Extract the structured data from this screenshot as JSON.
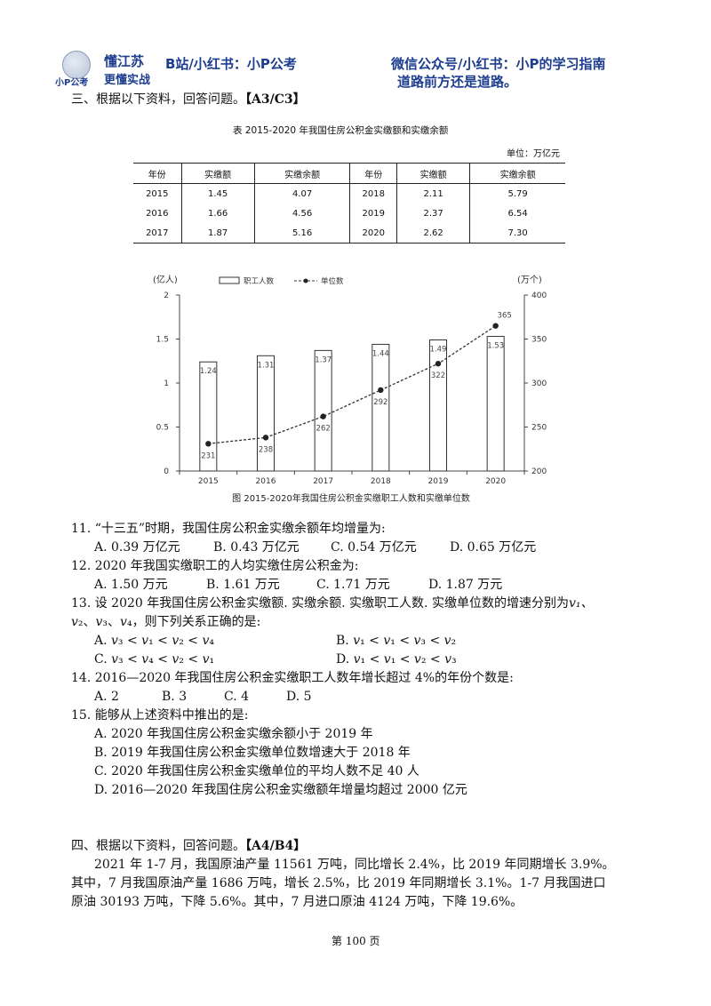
{
  "header": {
    "logo_text": "小P公考",
    "brand_top": "懂江苏",
    "brand_bottom": "更懂实战",
    "bilibili": "B站/小红书：小P公考",
    "wechat": "微信公众号/小红书：小P的学习指南",
    "slogan": "道路前方还是道路。"
  },
  "section3": {
    "heading": "三、根据以下资料，回答问题。",
    "tag": "【A3/C3】",
    "table_title": "表 2015-2020 年我国住房公积金实缴额和实缴余额",
    "unit": "单位：万亿元",
    "table_headers": [
      "年份",
      "实缴额",
      "实缴余额",
      "年份",
      "实缴额",
      "实缴余额"
    ],
    "table_rows": [
      [
        "2015",
        "1.45",
        "4.07",
        "2018",
        "2.11",
        "5.79"
      ],
      [
        "2016",
        "1.66",
        "4.56",
        "2019",
        "2.37",
        "6.54"
      ],
      [
        "2017",
        "1.87",
        "5.16",
        "2020",
        "2.62",
        "7.30"
      ]
    ]
  },
  "chart_data": {
    "type": "bar",
    "categories": [
      "2015",
      "2016",
      "2017",
      "2018",
      "2019",
      "2020"
    ],
    "series": [
      {
        "name": "职工人数",
        "type": "bar",
        "axis": "left",
        "values": [
          1.24,
          1.31,
          1.37,
          1.44,
          1.49,
          1.53
        ]
      },
      {
        "name": "单位数",
        "type": "line",
        "axis": "right",
        "values": [
          231,
          238,
          262,
          292,
          322,
          365
        ]
      }
    ],
    "ylabel": "(亿人)",
    "y2label": "(万个)",
    "ylim": [
      0,
      2
    ],
    "y2lim": [
      200,
      400
    ],
    "yticks": [
      "0",
      "0.5",
      "1",
      "1.5",
      "2"
    ],
    "y2ticks": [
      "200",
      "250",
      "300",
      "350",
      "400"
    ],
    "title": "图  2015-2020年我国住房公积金实缴职工人数和实缴单位数",
    "legend_position": "top-left",
    "grid": false
  },
  "questions": {
    "q11": {
      "stem": "11. “十三五”时期，我国住房公积金实缴余额年均增量为:",
      "a": "A. 0.39 万亿元",
      "b": "B. 0.43 万亿元",
      "c": "C. 0.54 万亿元",
      "d": "D. 0.65 万亿元"
    },
    "q12": {
      "stem": "12. 2020 年我国实缴职工的人均实缴住房公积金为:",
      "a": "A. 1.50 万元",
      "b": "B. 1.61 万元",
      "c": "C. 1.71 万元",
      "d": "D. 1.87 万元"
    },
    "q13": {
      "stem1": "13. 设 2020 年我国住房公积金实缴额. 实缴余额. 实缴职工人数. 实缴单位数的增速分别为",
      "stem1_tail": "𝑣₁、",
      "stem2": "𝑣₂、𝑣₃、𝑣₄，则下列关系正确的是:",
      "a": "A. 𝑣₃ < 𝑣₁ < 𝑣₂ < 𝑣₄",
      "b": "B. 𝑣₁ < 𝑣₁ < 𝑣₃ < 𝑣₂",
      "c": "C. 𝑣₃ < 𝑣₄ < 𝑣₂ < 𝑣₁",
      "d": "D. 𝑣₁ < 𝑣₁ < 𝑣₂ < 𝑣₃"
    },
    "q14": {
      "stem": "14. 2016—2020 年我国住房公积金实缴职工人数年增长超过 4%的年份个数是:",
      "a": "A. 2",
      "b": "B. 3",
      "c": "C. 4",
      "d": "D. 5"
    },
    "q15": {
      "stem": "15. 能够从上述资料中推出的是:",
      "a": "A. 2020 年我国住房公积金实缴余额小于 2019 年",
      "b": "B. 2019 年我国住房公积金实缴单位数增速大于 2018 年",
      "c": "C. 2020 年我国住房公积金实缴单位的平均人数不足 40 人",
      "d": "D. 2016—2020 年我国住房公积金实缴额年增量均超过 2000 亿元"
    }
  },
  "section4": {
    "heading": "四、根据以下资料，回答问题。",
    "tag": "【A4/B4】",
    "p1": "2021 年 1-7 月，我国原油产量 11561 万吨，同比增长 2.4%，比 2019 年同期增长 3.9%。",
    "p2": "其中，7 月我国原油产量 1686 万吨，增长 2.5%，比 2019 年同期增长 3.1%。1-7 月我国进口",
    "p3": "原油 30193 万吨，下降 5.6%。其中，7 月进口原油 4124 万吨，下降 19.6%。"
  },
  "footer": {
    "page": "第 100 页"
  }
}
